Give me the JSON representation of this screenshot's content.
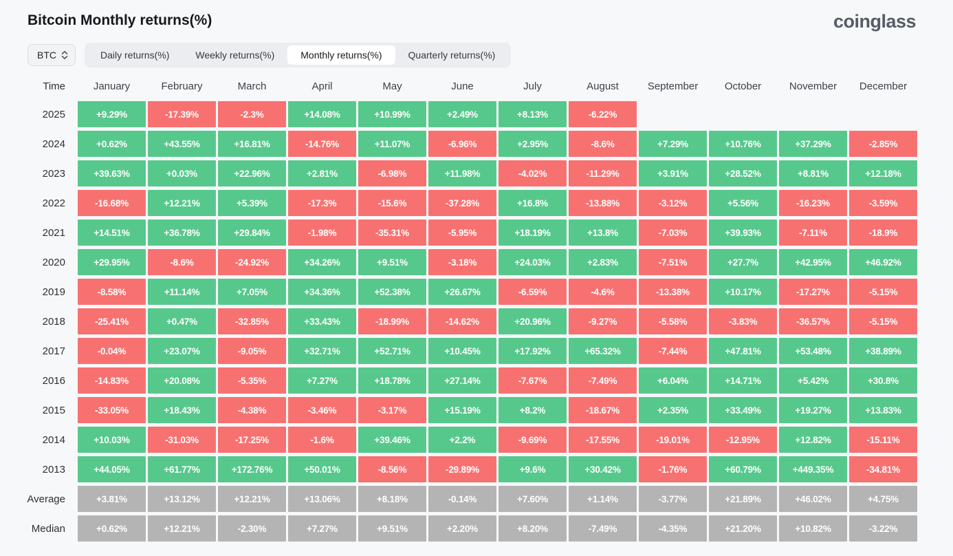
{
  "page": {
    "title": "Bitcoin Monthly returns(%)",
    "brand": "coinglass"
  },
  "controls": {
    "coin_selector": "BTC",
    "tabs": [
      {
        "label": "Daily returns(%)",
        "active": false
      },
      {
        "label": "Weekly returns(%)",
        "active": false
      },
      {
        "label": "Monthly returns(%)",
        "active": true
      },
      {
        "label": "Quarterly returns(%)",
        "active": false
      }
    ]
  },
  "colors": {
    "positive": "#57c88c",
    "negative": "#f87171",
    "neutral": "#b4b4b4"
  },
  "chart_data": {
    "type": "heatmap",
    "title": "Bitcoin Monthly returns(%)",
    "time_label": "Time",
    "columns": [
      "January",
      "February",
      "March",
      "April",
      "May",
      "June",
      "July",
      "August",
      "September",
      "October",
      "November",
      "December"
    ],
    "rows": [
      {
        "label": "2025",
        "summary": false,
        "values": [
          "+9.29%",
          "-17.39%",
          "-2.3%",
          "+14.08%",
          "+10.99%",
          "+2.49%",
          "+8.13%",
          "-6.22%",
          null,
          null,
          null,
          null
        ]
      },
      {
        "label": "2024",
        "summary": false,
        "values": [
          "+0.62%",
          "+43.55%",
          "+16.81%",
          "-14.76%",
          "+11.07%",
          "-6.96%",
          "+2.95%",
          "-8.6%",
          "+7.29%",
          "+10.76%",
          "+37.29%",
          "-2.85%"
        ]
      },
      {
        "label": "2023",
        "summary": false,
        "values": [
          "+39.63%",
          "+0.03%",
          "+22.96%",
          "+2.81%",
          "-6.98%",
          "+11.98%",
          "-4.02%",
          "-11.29%",
          "+3.91%",
          "+28.52%",
          "+8.81%",
          "+12.18%"
        ]
      },
      {
        "label": "2022",
        "summary": false,
        "values": [
          "-16.68%",
          "+12.21%",
          "+5.39%",
          "-17.3%",
          "-15.6%",
          "-37.28%",
          "+16.8%",
          "-13.88%",
          "-3.12%",
          "+5.56%",
          "-16.23%",
          "-3.59%"
        ]
      },
      {
        "label": "2021",
        "summary": false,
        "values": [
          "+14.51%",
          "+36.78%",
          "+29.84%",
          "-1.98%",
          "-35.31%",
          "-5.95%",
          "+18.19%",
          "+13.8%",
          "-7.03%",
          "+39.93%",
          "-7.11%",
          "-18.9%"
        ]
      },
      {
        "label": "2020",
        "summary": false,
        "values": [
          "+29.95%",
          "-8.6%",
          "-24.92%",
          "+34.26%",
          "+9.51%",
          "-3.18%",
          "+24.03%",
          "+2.83%",
          "-7.51%",
          "+27.7%",
          "+42.95%",
          "+46.92%"
        ]
      },
      {
        "label": "2019",
        "summary": false,
        "values": [
          "-8.58%",
          "+11.14%",
          "+7.05%",
          "+34.36%",
          "+52.38%",
          "+26.67%",
          "-6.59%",
          "-4.6%",
          "-13.38%",
          "+10.17%",
          "-17.27%",
          "-5.15%"
        ]
      },
      {
        "label": "2018",
        "summary": false,
        "values": [
          "-25.41%",
          "+0.47%",
          "-32.85%",
          "+33.43%",
          "-18.99%",
          "-14.62%",
          "+20.96%",
          "-9.27%",
          "-5.58%",
          "-3.83%",
          "-36.57%",
          "-5.15%"
        ]
      },
      {
        "label": "2017",
        "summary": false,
        "values": [
          "-0.04%",
          "+23.07%",
          "-9.05%",
          "+32.71%",
          "+52.71%",
          "+10.45%",
          "+17.92%",
          "+65.32%",
          "-7.44%",
          "+47.81%",
          "+53.48%",
          "+38.89%"
        ]
      },
      {
        "label": "2016",
        "summary": false,
        "values": [
          "-14.83%",
          "+20.08%",
          "-5.35%",
          "+7.27%",
          "+18.78%",
          "+27.14%",
          "-7.67%",
          "-7.49%",
          "+6.04%",
          "+14.71%",
          "+5.42%",
          "+30.8%"
        ]
      },
      {
        "label": "2015",
        "summary": false,
        "values": [
          "-33.05%",
          "+18.43%",
          "-4.38%",
          "-3.46%",
          "-3.17%",
          "+15.19%",
          "+8.2%",
          "-18.67%",
          "+2.35%",
          "+33.49%",
          "+19.27%",
          "+13.83%"
        ]
      },
      {
        "label": "2014",
        "summary": false,
        "values": [
          "+10.03%",
          "-31.03%",
          "-17.25%",
          "-1.6%",
          "+39.46%",
          "+2.2%",
          "-9.69%",
          "-17.55%",
          "-19.01%",
          "-12.95%",
          "+12.82%",
          "-15.11%"
        ]
      },
      {
        "label": "2013",
        "summary": false,
        "values": [
          "+44.05%",
          "+61.77%",
          "+172.76%",
          "+50.01%",
          "-8.56%",
          "-29.89%",
          "+9.6%",
          "+30.42%",
          "-1.76%",
          "+60.79%",
          "+449.35%",
          "-34.81%"
        ]
      },
      {
        "label": "Average",
        "summary": true,
        "values": [
          "+3.81%",
          "+13.12%",
          "+12.21%",
          "+13.06%",
          "+8.18%",
          "-0.14%",
          "+7.60%",
          "+1.14%",
          "-3.77%",
          "+21.89%",
          "+46.02%",
          "+4.75%"
        ]
      },
      {
        "label": "Median",
        "summary": true,
        "values": [
          "+0.62%",
          "+12.21%",
          "-2.30%",
          "+7.27%",
          "+9.51%",
          "+2.20%",
          "+8.20%",
          "-7.49%",
          "-4.35%",
          "+21.20%",
          "+10.82%",
          "-3.22%"
        ]
      }
    ]
  }
}
